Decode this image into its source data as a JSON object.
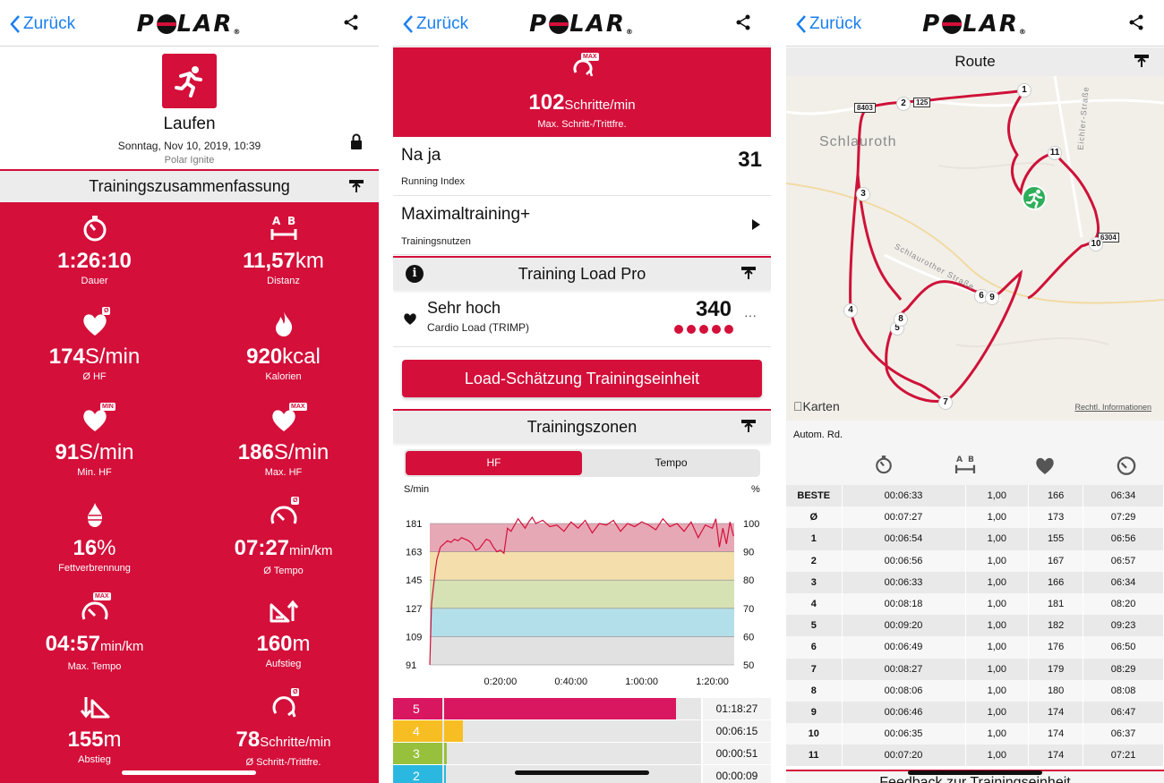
{
  "common": {
    "back_label": "Zurück",
    "logo_text": "POLAR"
  },
  "panel1": {
    "sport_name": "Laufen",
    "date": "Sonntag, Nov 10, 2019, 10:39",
    "device": "Polar Ignite",
    "section_title": "Trainingszusammenfassung",
    "stats": [
      {
        "icon": "stopwatch-icon",
        "value": "1:26:10",
        "unit": "",
        "label": "Dauer"
      },
      {
        "icon": "distance-icon",
        "value": "11,57",
        "unit": "km",
        "label": "Distanz"
      },
      {
        "icon": "heart-avg-icon",
        "badge": "Ø",
        "value": "174",
        "unit": "S/min",
        "label": "Ø HF"
      },
      {
        "icon": "flame-icon",
        "value": "920",
        "unit": "kcal",
        "label": "Kalorien"
      },
      {
        "icon": "heart-min-icon",
        "badge": "MIN",
        "value": "91",
        "unit": "S/min",
        "label": "Min. HF"
      },
      {
        "icon": "heart-max-icon",
        "badge": "MAX",
        "value": "186",
        "unit": "S/min",
        "label": "Max. HF"
      },
      {
        "icon": "fat-burn-icon",
        "value": "16",
        "unit": "%",
        "label": "Fettverbrennung"
      },
      {
        "icon": "pace-avg-icon",
        "badge": "Ø",
        "value": "07:27",
        "unit": "min/km",
        "label": "Ø Tempo"
      },
      {
        "icon": "pace-max-icon",
        "badge": "MAX",
        "value": "04:57",
        "unit": "min/km",
        "label": "Max. Tempo"
      },
      {
        "icon": "ascent-icon",
        "value": "160",
        "unit": "m",
        "label": "Aufstieg"
      },
      {
        "icon": "descent-icon",
        "value": "155",
        "unit": "m",
        "label": "Abstieg"
      },
      {
        "icon": "cadence-avg-icon",
        "badge": "Ø",
        "value": "78",
        "unit": "Schritte/min",
        "label": "Ø Schritt-/Trittfre."
      }
    ]
  },
  "panel2": {
    "cadence_badge": "MAX",
    "cadence_value": "102",
    "cadence_unit": "Schritte/min",
    "cadence_label": "Max. Schritt-/Trittfre.",
    "running_index_title": "Na ja",
    "running_index_label": "Running Index",
    "running_index_value": "31",
    "training_benefit_title": "Maximaltraining+",
    "training_benefit_label": "Trainingsnutzen",
    "load_section_title": "Training Load Pro",
    "load_level": "Sehr hoch",
    "load_label": "Cardio Load (TRIMP)",
    "load_value": "340",
    "load_dots": 5,
    "more_label": "···",
    "load_button": "Load-Schätzung Trainingseinheit",
    "zones_section_title": "Trainingszonen",
    "tab_hf": "HF",
    "tab_tempo": "Tempo",
    "colors": {
      "brand": "#d40f3a"
    },
    "zones": [
      {
        "zone": "5",
        "time": "01:18:27",
        "fraction": 0.91,
        "color": "#d91660"
      },
      {
        "zone": "4",
        "time": "00:06:15",
        "fraction": 0.073,
        "color": "#f7be24"
      },
      {
        "zone": "3",
        "time": "00:00:51",
        "fraction": 0.01,
        "color": "#97c13c"
      },
      {
        "zone": "2",
        "time": "00:00:09",
        "fraction": 0.002,
        "color": "#2bb8e0"
      }
    ]
  },
  "chart_data": {
    "type": "line",
    "ylabel": "S/min",
    "y2label": "%",
    "ylim": [
      91,
      186
    ],
    "yticks": [
      "181",
      "163",
      "145",
      "127",
      "109",
      "91"
    ],
    "y2ticks": [
      "100",
      "90",
      "80",
      "70",
      "60",
      "50"
    ],
    "xlim": [
      0,
      86.2
    ],
    "xticks": [
      {
        "value": 20,
        "label": "0:20:00"
      },
      {
        "value": 40,
        "label": "0:40:00"
      },
      {
        "value": 60,
        "label": "1:00:00"
      },
      {
        "value": 80,
        "label": "1:20:00"
      }
    ],
    "zone_bands": [
      {
        "zone": 5,
        "from": 163,
        "to": 181,
        "color": "#e7a8b6"
      },
      {
        "zone": 4,
        "from": 145,
        "to": 163,
        "color": "#f4dfac"
      },
      {
        "zone": 3,
        "from": 127,
        "to": 145,
        "color": "#d6e2b4"
      },
      {
        "zone": 2,
        "from": 109,
        "to": 127,
        "color": "#b3dfea"
      },
      {
        "zone": 1,
        "from": 91,
        "to": 109,
        "color": "#e1e1e1"
      }
    ],
    "series": [
      {
        "color": "#d40f3a",
        "x": [
          0,
          0.5,
          1,
          1.5,
          2,
          2.5,
          3,
          4,
          5,
          6,
          7,
          8,
          9,
          10,
          11,
          12,
          13,
          14,
          15,
          16,
          17,
          18,
          19,
          20,
          21,
          22,
          23,
          24,
          25,
          26,
          27,
          28,
          29,
          30,
          32,
          34,
          36,
          38,
          40,
          42,
          44,
          46,
          48,
          50,
          52,
          54,
          56,
          58,
          60,
          62,
          64,
          66,
          68,
          70,
          72,
          74,
          76,
          78,
          80,
          81,
          82,
          83,
          84,
          85,
          86
        ],
        "y": [
          91,
          130,
          140,
          150,
          158,
          162,
          166,
          168,
          170,
          169,
          171,
          170,
          172,
          171,
          170,
          168,
          164,
          165,
          168,
          171,
          170,
          166,
          163,
          164,
          162,
          178,
          176,
          180,
          184,
          181,
          178,
          182,
          185,
          181,
          183,
          179,
          180,
          176,
          182,
          178,
          183,
          175,
          181,
          180,
          183,
          176,
          181,
          179,
          182,
          180,
          177,
          184,
          179,
          181,
          176,
          182,
          172,
          180,
          178,
          184,
          166,
          178,
          168,
          182,
          173
        ]
      }
    ]
  },
  "panel3": {
    "route_title": "Route",
    "town_label": "Schlauroth",
    "street_label_1": "Schlaurother Straße",
    "street_label_2": "Eichler-Straße",
    "road_labels": [
      "8403",
      "125",
      "6304"
    ],
    "map_brand": "Karten",
    "map_legal": "Rechtl. Informationen",
    "lap_mode": "Autom. Rd.",
    "lap_markers": [
      "1",
      "2",
      "3",
      "4",
      "5",
      "6",
      "7",
      "8",
      "9",
      "10",
      "11"
    ],
    "laps": [
      {
        "lap": "BESTE",
        "time": "00:06:33",
        "dist": "1,00",
        "hr": "166",
        "pace": "06:34"
      },
      {
        "lap": "Ø",
        "time": "00:07:27",
        "dist": "1,00",
        "hr": "173",
        "pace": "07:29"
      },
      {
        "lap": "1",
        "time": "00:06:54",
        "dist": "1,00",
        "hr": "155",
        "pace": "06:56"
      },
      {
        "lap": "2",
        "time": "00:06:56",
        "dist": "1,00",
        "hr": "167",
        "pace": "06:57"
      },
      {
        "lap": "3",
        "time": "00:06:33",
        "dist": "1,00",
        "hr": "166",
        "pace": "06:34"
      },
      {
        "lap": "4",
        "time": "00:08:18",
        "dist": "1,00",
        "hr": "181",
        "pace": "08:20"
      },
      {
        "lap": "5",
        "time": "00:09:20",
        "dist": "1,00",
        "hr": "182",
        "pace": "09:23"
      },
      {
        "lap": "6",
        "time": "00:06:49",
        "dist": "1,00",
        "hr": "176",
        "pace": "06:50"
      },
      {
        "lap": "7",
        "time": "00:08:27",
        "dist": "1,00",
        "hr": "179",
        "pace": "08:29"
      },
      {
        "lap": "8",
        "time": "00:08:06",
        "dist": "1,00",
        "hr": "180",
        "pace": "08:08"
      },
      {
        "lap": "9",
        "time": "00:06:46",
        "dist": "1,00",
        "hr": "174",
        "pace": "06:47"
      },
      {
        "lap": "10",
        "time": "00:06:35",
        "dist": "1,00",
        "hr": "174",
        "pace": "06:37"
      },
      {
        "lap": "11",
        "time": "00:07:20",
        "dist": "1,00",
        "hr": "174",
        "pace": "07:21"
      }
    ],
    "footer_title": "Feedback zur Trainingseinheit"
  }
}
